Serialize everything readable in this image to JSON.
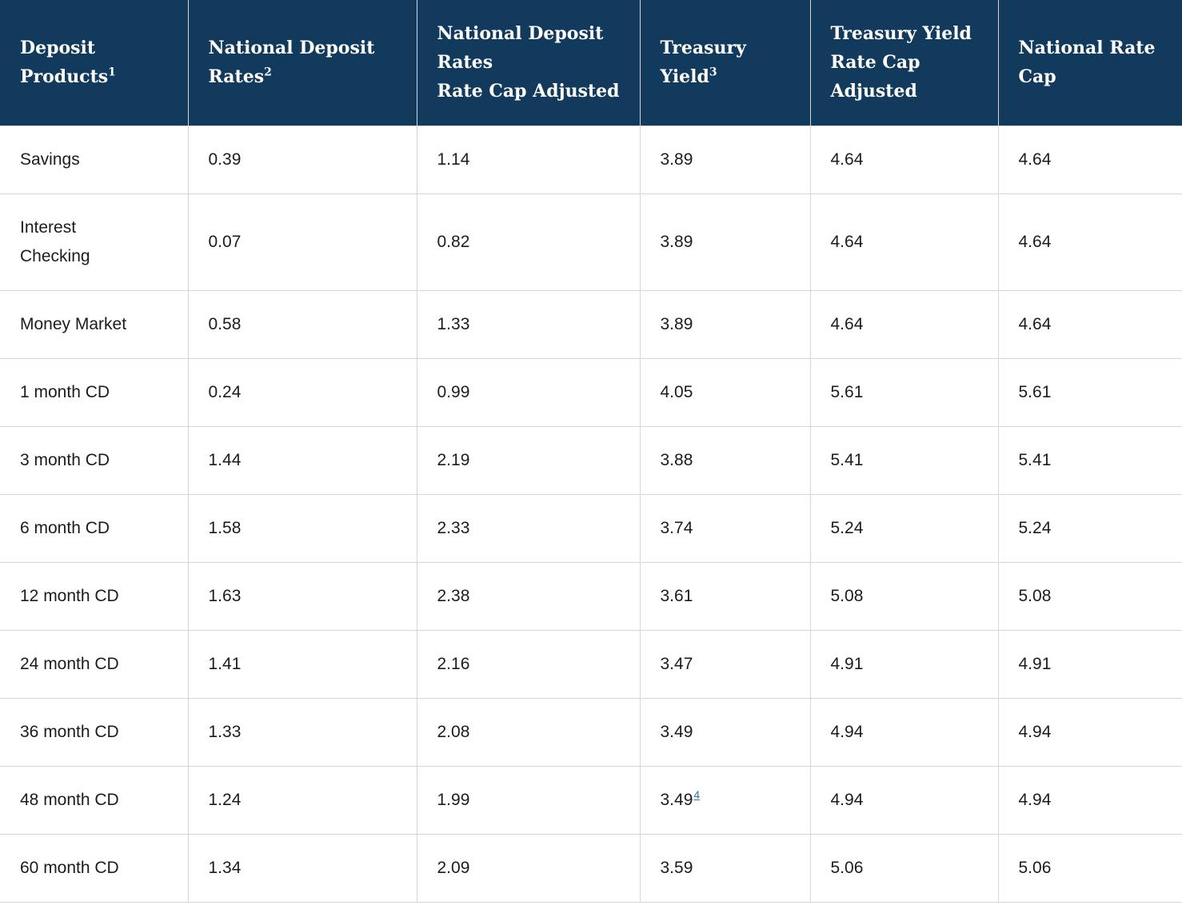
{
  "colors": {
    "header_bg": "#123A5C",
    "header_text": "#FFFFFF",
    "body_text": "#1C1C1C",
    "border": "#D6D6D6",
    "link": "#2B76BB"
  },
  "table": {
    "columns": [
      {
        "label": "Deposit\nProducts",
        "sup": "1"
      },
      {
        "label": "National Deposit\nRates",
        "sup": "2"
      },
      {
        "label": "National Deposit\nRates\nRate Cap Adjusted",
        "sup": ""
      },
      {
        "label": "Treasury\nYield",
        "sup": "3"
      },
      {
        "label": "Treasury Yield\nRate Cap\nAdjusted",
        "sup": ""
      },
      {
        "label": "National Rate\nCap",
        "sup": ""
      }
    ],
    "rows": [
      {
        "product": "Savings",
        "cells": [
          {
            "v": "0.39"
          },
          {
            "v": "1.14"
          },
          {
            "v": "3.89"
          },
          {
            "v": "4.64"
          },
          {
            "v": "4.64"
          }
        ]
      },
      {
        "product": "Interest\nChecking",
        "cells": [
          {
            "v": "0.07"
          },
          {
            "v": "0.82"
          },
          {
            "v": "3.89"
          },
          {
            "v": "4.64"
          },
          {
            "v": "4.64"
          }
        ]
      },
      {
        "product": "Money Market",
        "cells": [
          {
            "v": "0.58"
          },
          {
            "v": "1.33"
          },
          {
            "v": "3.89"
          },
          {
            "v": "4.64"
          },
          {
            "v": "4.64"
          }
        ]
      },
      {
        "product": "1 month CD",
        "cells": [
          {
            "v": "0.24"
          },
          {
            "v": "0.99"
          },
          {
            "v": "4.05"
          },
          {
            "v": "5.61"
          },
          {
            "v": "5.61"
          }
        ]
      },
      {
        "product": "3 month CD",
        "cells": [
          {
            "v": "1.44"
          },
          {
            "v": "2.19"
          },
          {
            "v": "3.88"
          },
          {
            "v": "5.41"
          },
          {
            "v": "5.41"
          }
        ]
      },
      {
        "product": "6 month CD",
        "cells": [
          {
            "v": "1.58"
          },
          {
            "v": "2.33"
          },
          {
            "v": "3.74"
          },
          {
            "v": "5.24"
          },
          {
            "v": "5.24"
          }
        ]
      },
      {
        "product": "12 month CD",
        "cells": [
          {
            "v": "1.63"
          },
          {
            "v": "2.38"
          },
          {
            "v": "3.61"
          },
          {
            "v": "5.08"
          },
          {
            "v": "5.08"
          }
        ]
      },
      {
        "product": "24 month CD",
        "cells": [
          {
            "v": "1.41"
          },
          {
            "v": "2.16"
          },
          {
            "v": "3.47"
          },
          {
            "v": "4.91"
          },
          {
            "v": "4.91"
          }
        ]
      },
      {
        "product": "36 month CD",
        "cells": [
          {
            "v": "1.33"
          },
          {
            "v": "2.08"
          },
          {
            "v": "3.49"
          },
          {
            "v": "4.94"
          },
          {
            "v": "4.94"
          }
        ]
      },
      {
        "product": "48 month CD",
        "cells": [
          {
            "v": "1.24"
          },
          {
            "v": "1.99"
          },
          {
            "v": "3.49",
            "sup": "4"
          },
          {
            "v": "4.94"
          },
          {
            "v": "4.94"
          }
        ]
      },
      {
        "product": "60 month CD",
        "cells": [
          {
            "v": "1.34"
          },
          {
            "v": "2.09"
          },
          {
            "v": "3.59"
          },
          {
            "v": "5.06"
          },
          {
            "v": "5.06"
          }
        ]
      }
    ]
  }
}
